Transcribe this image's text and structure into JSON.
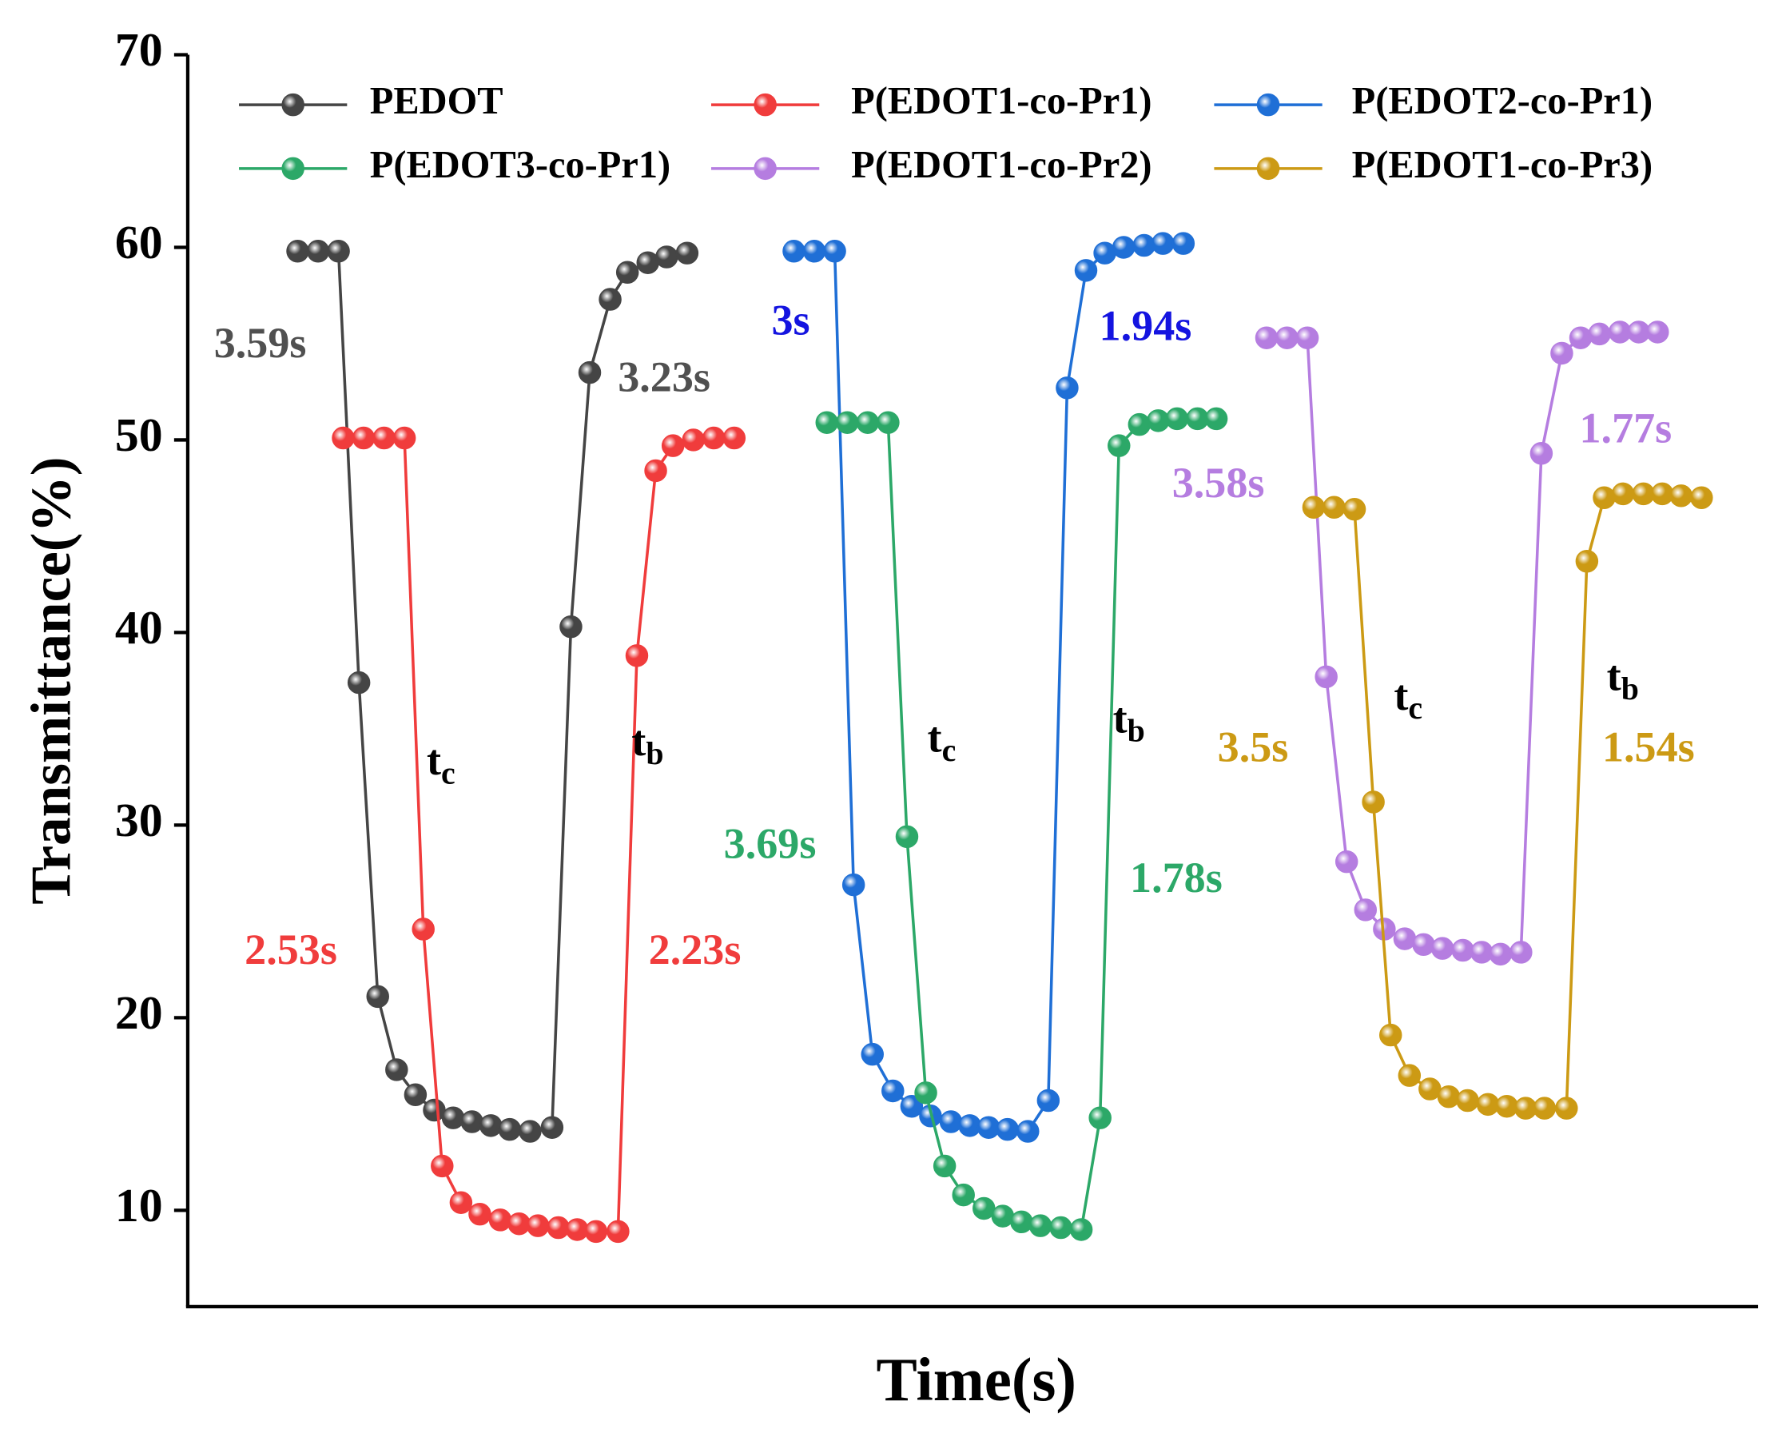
{
  "chart_data": {
    "type": "line",
    "xlabel": "Time(s)",
    "ylabel": "Transmittance(%)",
    "xlim": [
      0,
      100
    ],
    "ylim": [
      5,
      70
    ],
    "yticks": [
      10,
      20,
      30,
      40,
      50,
      60,
      70
    ],
    "legend": "top",
    "series": [
      {
        "name": "PEDOT",
        "color": "#454545",
        "x": [
          7.0,
          8.3,
          9.6,
          10.9,
          12.1,
          13.3,
          14.5,
          15.7,
          16.9,
          18.1,
          19.3,
          20.5,
          21.8,
          23.2,
          24.4,
          25.6,
          26.9,
          28.0,
          29.3,
          30.5,
          31.8
        ],
        "values": [
          59.8,
          59.8,
          59.8,
          37.4,
          21.1,
          17.3,
          16.0,
          15.2,
          14.8,
          14.6,
          14.4,
          14.2,
          14.1,
          14.3,
          40.3,
          53.5,
          57.3,
          58.7,
          59.2,
          59.5,
          59.7
        ]
      },
      {
        "name": "P(EDOT1-co-Pr1)",
        "color": "#f03c3c",
        "x": [
          9.9,
          11.2,
          12.5,
          13.8,
          15.0,
          16.2,
          17.4,
          18.6,
          19.9,
          21.1,
          22.3,
          23.6,
          24.8,
          26.0,
          27.4,
          28.6,
          29.8,
          30.9,
          32.2,
          33.5,
          34.8
        ],
        "values": [
          50.1,
          50.1,
          50.1,
          50.1,
          24.6,
          12.3,
          10.4,
          9.8,
          9.5,
          9.3,
          9.2,
          9.1,
          9.0,
          8.9,
          8.9,
          38.8,
          48.4,
          49.7,
          50.0,
          50.1,
          50.1
        ]
      },
      {
        "name": "P(EDOT2-co-Pr1)",
        "color": "#1f6fd6",
        "x": [
          38.6,
          39.9,
          41.2,
          42.4,
          43.6,
          44.9,
          46.1,
          47.3,
          48.6,
          49.8,
          51.0,
          52.2,
          53.5,
          54.8,
          56.0,
          57.2,
          58.4,
          59.6,
          60.9,
          62.1,
          63.4
        ],
        "values": [
          59.8,
          59.8,
          59.8,
          26.9,
          18.1,
          16.2,
          15.4,
          14.9,
          14.6,
          14.4,
          14.3,
          14.2,
          14.1,
          15.7,
          52.7,
          58.8,
          59.7,
          60.0,
          60.1,
          60.2,
          60.2
        ]
      },
      {
        "name": "P(EDOT3-co-Pr1)",
        "color": "#2ca868",
        "x": [
          40.7,
          42.0,
          43.3,
          44.6,
          45.8,
          47.0,
          48.2,
          49.4,
          50.7,
          51.9,
          53.1,
          54.3,
          55.6,
          56.9,
          58.1,
          59.3,
          60.6,
          61.8,
          63.0,
          64.3,
          65.5
        ],
        "values": [
          50.9,
          50.9,
          50.9,
          50.9,
          29.4,
          16.1,
          12.3,
          10.8,
          10.1,
          9.7,
          9.4,
          9.2,
          9.1,
          9.0,
          14.8,
          49.7,
          50.8,
          51.0,
          51.1,
          51.1,
          51.1
        ]
      },
      {
        "name": "P(EDOT1-co-Pr2)",
        "color": "#b57de0",
        "x": [
          68.7,
          70.0,
          71.3,
          72.5,
          73.8,
          75.0,
          76.2,
          77.5,
          78.7,
          79.9,
          81.2,
          82.4,
          83.6,
          84.9,
          86.2,
          87.5,
          88.7,
          89.9,
          91.2,
          92.4,
          93.6
        ],
        "values": [
          55.3,
          55.3,
          55.3,
          37.7,
          28.1,
          25.6,
          24.6,
          24.1,
          23.8,
          23.6,
          23.5,
          23.4,
          23.3,
          23.4,
          49.3,
          54.5,
          55.3,
          55.5,
          55.6,
          55.6,
          55.6
        ]
      },
      {
        "name": "P(EDOT1-co-Pr3)",
        "color": "#cc9a14",
        "x": [
          71.7,
          73.0,
          74.3,
          75.5,
          76.6,
          77.8,
          79.1,
          80.3,
          81.5,
          82.8,
          84.0,
          85.2,
          86.4,
          87.8,
          89.1,
          90.2,
          91.4,
          92.7,
          93.9,
          95.1,
          96.4
        ],
        "values": [
          46.5,
          46.5,
          46.4,
          31.2,
          19.1,
          17.0,
          16.3,
          15.9,
          15.7,
          15.5,
          15.4,
          15.3,
          15.3,
          15.3,
          43.7,
          47.0,
          47.2,
          47.2,
          47.2,
          47.1,
          47.0
        ]
      }
    ],
    "annotations": [
      {
        "text": "3.59s",
        "color": "#505050"
      },
      {
        "text": "3.23s",
        "color": "#505050"
      },
      {
        "text": "2.53s",
        "color": "#f03c3c"
      },
      {
        "text": "2.23s",
        "color": "#f03c3c"
      },
      {
        "text": "3s",
        "color": "#1414e0"
      },
      {
        "text": "1.94s",
        "color": "#1414e0"
      },
      {
        "text": "3.69s",
        "color": "#2ca868"
      },
      {
        "text": "1.78s",
        "color": "#2ca868"
      },
      {
        "text": "3.58s",
        "color": "#b57de0"
      },
      {
        "text": "1.77s",
        "color": "#b57de0"
      },
      {
        "text": "3.5s",
        "color": "#cc9a14"
      },
      {
        "text": "1.54s",
        "color": "#cc9a14"
      }
    ],
    "symbols": [
      {
        "base": "t",
        "sub": "c"
      },
      {
        "base": "t",
        "sub": "b"
      },
      {
        "base": "t",
        "sub": "c"
      },
      {
        "base": "t",
        "sub": "b"
      },
      {
        "base": "t",
        "sub": "c"
      },
      {
        "base": "t",
        "sub": "b"
      }
    ]
  }
}
